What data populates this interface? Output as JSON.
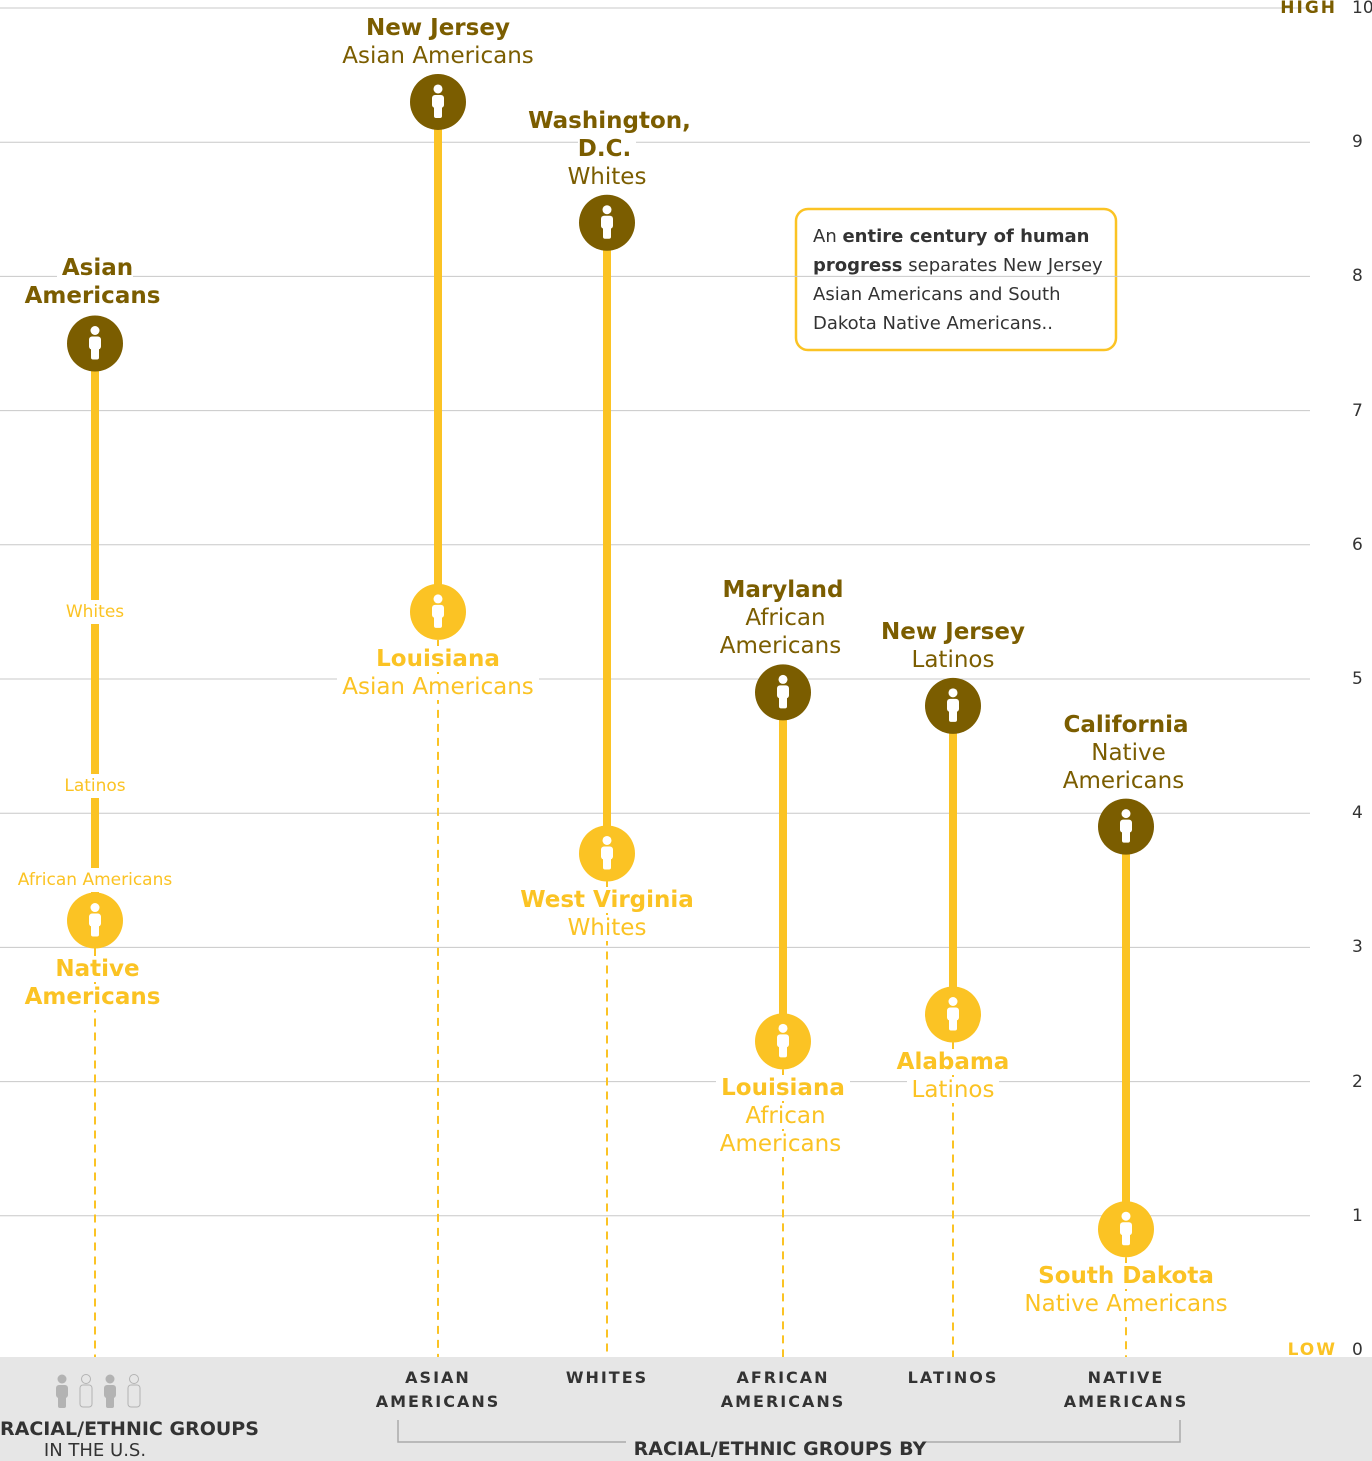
{
  "chart_data": {
    "type": "dumbbell",
    "ylim": [
      0,
      10
    ],
    "yticks": [
      0,
      1,
      2,
      3,
      4,
      5,
      6,
      7,
      8,
      9,
      10
    ],
    "grid": true,
    "axis_end_labels": {
      "high": "HIGH",
      "low": "LOW"
    },
    "colors": {
      "high": "#7b5d00",
      "low": "#fbc324"
    },
    "overall": {
      "name": "RACIAL/ETHNIC GROUPS",
      "subname": "IN THE U.S.",
      "high": {
        "name": "Asian Americans",
        "value": 7.5
      },
      "low": {
        "name": "Native Americans",
        "value": 3.2
      },
      "middle": {
        "names": [
          "Whites",
          "Latinos",
          "African Americans"
        ],
        "values": [
          5.5,
          4.2,
          3.5
        ]
      }
    },
    "by_state": {
      "name": "RACIAL/ETHNIC GROUPS BY STATE",
      "categories": [
        "ASIAN AMERICANS",
        "WHITES",
        "AFRICAN AMERICANS",
        "LATINOS",
        "NATIVE AMERICANS"
      ],
      "high": {
        "states": [
          "New Jersey",
          "Washington, D.C.",
          "Maryland",
          "New Jersey",
          "California"
        ],
        "groups": [
          "Asian Americans",
          "Whites",
          "African Americans",
          "Latinos",
          "Native Americans"
        ],
        "values": [
          9.3,
          8.4,
          4.9,
          4.8,
          3.9
        ]
      },
      "low": {
        "states": [
          "Louisiana",
          "West Virginia",
          "Louisiana",
          "Alabama",
          "South Dakota"
        ],
        "groups": [
          "Asian Americans",
          "Whites",
          "African Americans",
          "Latinos",
          "Native Americans"
        ],
        "values": [
          5.5,
          3.7,
          2.3,
          2.5,
          0.9
        ]
      }
    },
    "annotation": {
      "before": "An",
      "bold": "entire century of human progress",
      "after": "separates New Jersey Asian Americans and South Dakota Native Americans.."
    }
  }
}
